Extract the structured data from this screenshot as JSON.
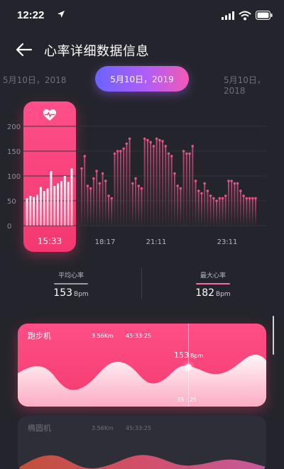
{
  "status_bar": {
    "time": "12:22",
    "icons": [
      "location-arrow-icon",
      "signal-icon",
      "wifi-icon",
      "battery-icon"
    ]
  },
  "header": {
    "back_icon": "back-arrow-icon",
    "title": "心率详细数据信息"
  },
  "date_selector": {
    "prev": "5月10日，2018",
    "current": "5月10日，2019",
    "next": "5月10日，2018"
  },
  "colors": {
    "background": "#24252c",
    "accent_pink": "#f33b6f",
    "accent_purple": "#7b6cff",
    "bar": "#c74b7a"
  },
  "chart_data": {
    "type": "bar",
    "ylim": [
      0,
      200
    ],
    "yticks": [
      "200",
      "150",
      "100",
      "50",
      "0"
    ],
    "xticks": [
      "15:33",
      "18:17",
      "21:11",
      "23:11"
    ],
    "selected_window": {
      "label": "15:33",
      "values": [
        55,
        60,
        58,
        62,
        78,
        70,
        75,
        110,
        80,
        85,
        90,
        100,
        88,
        115
      ]
    },
    "values": [
      115,
      140,
      80,
      75,
      95,
      110,
      85,
      105,
      90,
      60,
      55,
      145,
      150,
      150,
      155,
      165,
      175,
      85,
      95,
      80,
      75,
      175,
      172,
      168,
      160,
      175,
      172,
      170,
      160,
      145,
      140,
      105,
      80,
      75,
      150,
      145,
      145,
      160,
      90,
      70,
      65,
      85,
      70,
      60,
      55,
      50,
      55,
      55,
      60,
      90,
      90,
      85,
      85,
      70,
      60,
      55,
      55,
      55,
      55
    ]
  },
  "stats": {
    "average": {
      "label": "平均心率",
      "value": "153",
      "unit": "Bpm",
      "underline": "#9b9ba6"
    },
    "max": {
      "label": "最大心率",
      "value": "182",
      "unit": "Bpm",
      "underline": "#f06fa8"
    }
  },
  "activities": [
    {
      "name": "跑步机",
      "distance": "3.56Km",
      "duration": "45:33:25",
      "bpm": "153",
      "bpm_unit": "Bpm",
      "marker_time": "35 : 25"
    },
    {
      "name": "椭圆机",
      "distance": "3.56Km",
      "duration": "45:33:25"
    }
  ]
}
